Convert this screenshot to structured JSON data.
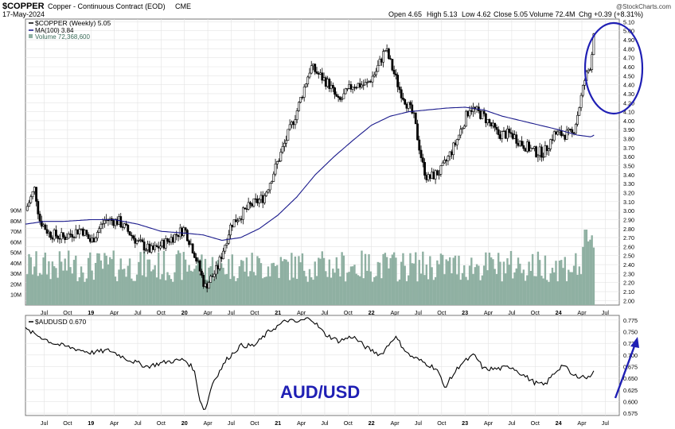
{
  "header": {
    "symbol": "$COPPER",
    "name": "Copper - Continuous Contract (EOD)",
    "exchange": "CME",
    "date": "17-May-2024",
    "open": "Open 4.65",
    "high": "High 5.13",
    "low": "Low 4.62",
    "close": "Close 5.05",
    "volume": "Volume 72.4M",
    "change": "Chg +0.39 (+8.31%)",
    "watermark": "@StockCharts.com"
  },
  "colors": {
    "price": "#000000",
    "ma": "#1a1a8c",
    "volume": "#8fb0a2",
    "annotation": "#1f1fb4",
    "grid": "#e3e3e3"
  },
  "chart_data": [
    {
      "type": "candlestick",
      "legend": [
        "$COPPER (Weekly) 5.05",
        "MA(100) 3.84",
        "Volume 72,368,600"
      ],
      "x_ticks": [
        "Jul",
        "Oct",
        "19",
        "Apr",
        "Jul",
        "Oct",
        "20",
        "Apr",
        "Jul",
        "Oct",
        "21",
        "Apr",
        "Jul",
        "Oct",
        "22",
        "Apr",
        "Jul",
        "Oct",
        "23",
        "Apr",
        "Jul",
        "Oct",
        "24",
        "Apr",
        "Jul"
      ],
      "x_tick_dates": [
        2018.5,
        2018.75,
        2019.0,
        2019.25,
        2019.5,
        2019.75,
        2020.0,
        2020.25,
        2020.5,
        2020.75,
        2021.0,
        2021.25,
        2021.5,
        2021.75,
        2022.0,
        2022.25,
        2022.5,
        2022.75,
        2023.0,
        2023.25,
        2023.5,
        2023.75,
        2024.0,
        2024.25,
        2024.5
      ],
      "xlim": [
        2018.3,
        2024.65
      ],
      "ylim": [
        1.95,
        5.13
      ],
      "y_ticks": [
        "2.00",
        "2.10",
        "2.20",
        "2.30",
        "2.40",
        "2.50",
        "2.60",
        "2.70",
        "2.80",
        "2.90",
        "3.00",
        "3.10",
        "3.20",
        "3.30",
        "3.40",
        "3.50",
        "3.60",
        "3.70",
        "3.80",
        "3.90",
        "4.00",
        "4.10",
        "4.20",
        "4.30",
        "4.40",
        "4.50",
        "4.60",
        "4.70",
        "4.80",
        "4.90",
        "5.00",
        "5.10"
      ],
      "price_anchors": [
        [
          2018.3,
          3.0
        ],
        [
          2018.4,
          3.25
        ],
        [
          2018.45,
          2.9
        ],
        [
          2018.55,
          2.75
        ],
        [
          2018.7,
          2.7
        ],
        [
          2018.9,
          2.8
        ],
        [
          2019.0,
          2.65
        ],
        [
          2019.15,
          2.9
        ],
        [
          2019.3,
          2.88
        ],
        [
          2019.5,
          2.65
        ],
        [
          2019.65,
          2.55
        ],
        [
          2019.8,
          2.65
        ],
        [
          2020.0,
          2.8
        ],
        [
          2020.1,
          2.55
        ],
        [
          2020.22,
          2.15
        ],
        [
          2020.35,
          2.35
        ],
        [
          2020.5,
          2.85
        ],
        [
          2020.7,
          3.05
        ],
        [
          2020.85,
          3.15
        ],
        [
          2021.0,
          3.55
        ],
        [
          2021.2,
          4.1
        ],
        [
          2021.35,
          4.6
        ],
        [
          2021.45,
          4.5
        ],
        [
          2021.55,
          4.4
        ],
        [
          2021.65,
          4.2
        ],
        [
          2021.8,
          4.4
        ],
        [
          2021.95,
          4.4
        ],
        [
          2022.05,
          4.55
        ],
        [
          2022.15,
          4.8
        ],
        [
          2022.3,
          4.35
        ],
        [
          2022.45,
          4.05
        ],
        [
          2022.55,
          3.5
        ],
        [
          2022.6,
          3.35
        ],
        [
          2022.75,
          3.45
        ],
        [
          2022.9,
          3.75
        ],
        [
          2023.05,
          4.15
        ],
        [
          2023.2,
          4.05
        ],
        [
          2023.35,
          3.85
        ],
        [
          2023.5,
          3.85
        ],
        [
          2023.6,
          3.75
        ],
        [
          2023.75,
          3.65
        ],
        [
          2023.85,
          3.65
        ],
        [
          2023.95,
          3.85
        ],
        [
          2024.05,
          3.85
        ],
        [
          2024.15,
          3.85
        ],
        [
          2024.2,
          4.05
        ],
        [
          2024.28,
          4.45
        ],
        [
          2024.35,
          4.65
        ],
        [
          2024.38,
          5.05
        ]
      ],
      "ma_anchors": [
        [
          2018.3,
          2.85
        ],
        [
          2018.5,
          2.88
        ],
        [
          2018.7,
          2.88
        ],
        [
          2019.0,
          2.9
        ],
        [
          2019.25,
          2.9
        ],
        [
          2019.5,
          2.85
        ],
        [
          2019.75,
          2.77
        ],
        [
          2020.0,
          2.75
        ],
        [
          2020.2,
          2.73
        ],
        [
          2020.4,
          2.67
        ],
        [
          2020.6,
          2.7
        ],
        [
          2020.8,
          2.8
        ],
        [
          2021.0,
          2.95
        ],
        [
          2021.2,
          3.15
        ],
        [
          2021.4,
          3.4
        ],
        [
          2021.6,
          3.6
        ],
        [
          2021.8,
          3.78
        ],
        [
          2022.0,
          3.95
        ],
        [
          2022.2,
          4.05
        ],
        [
          2022.4,
          4.1
        ],
        [
          2022.6,
          4.12
        ],
        [
          2022.8,
          4.14
        ],
        [
          2023.0,
          4.15
        ],
        [
          2023.2,
          4.12
        ],
        [
          2023.4,
          4.05
        ],
        [
          2023.6,
          4.0
        ],
        [
          2023.8,
          3.95
        ],
        [
          2024.0,
          3.9
        ],
        [
          2024.2,
          3.84
        ],
        [
          2024.35,
          3.82
        ],
        [
          2024.38,
          3.84
        ]
      ],
      "volume_axis": [
        "90M",
        "80M",
        "70M",
        "60M",
        "50M",
        "40M",
        "30M",
        "20M",
        "10M"
      ],
      "volume_ylim": [
        0,
        92
      ]
    },
    {
      "type": "line",
      "legend": [
        "$AUDUSD 0.670"
      ],
      "annotation": "AUD/USD",
      "ylim": [
        0.57,
        0.785
      ],
      "y_ticks": [
        "0.775",
        "0.750",
        "0.725",
        "0.700",
        "0.675",
        "0.650",
        "0.625",
        "0.600",
        "0.575"
      ],
      "x_ticks": [
        "Jul",
        "Oct",
        "19",
        "Apr",
        "Jul",
        "Oct",
        "20",
        "Apr",
        "Jul",
        "Oct",
        "21",
        "Apr",
        "Jul",
        "Oct",
        "22",
        "Apr",
        "Jul",
        "Oct",
        "23",
        "Apr",
        "Jul",
        "Oct",
        "24",
        "Apr",
        "Jul"
      ],
      "anchors": [
        [
          2018.3,
          0.755
        ],
        [
          2018.45,
          0.74
        ],
        [
          2018.6,
          0.725
        ],
        [
          2018.8,
          0.715
        ],
        [
          2019.0,
          0.705
        ],
        [
          2019.2,
          0.71
        ],
        [
          2019.4,
          0.69
        ],
        [
          2019.6,
          0.675
        ],
        [
          2019.8,
          0.685
        ],
        [
          2020.0,
          0.69
        ],
        [
          2020.1,
          0.67
        ],
        [
          2020.17,
          0.6
        ],
        [
          2020.22,
          0.58
        ],
        [
          2020.3,
          0.64
        ],
        [
          2020.45,
          0.69
        ],
        [
          2020.6,
          0.72
        ],
        [
          2020.75,
          0.72
        ],
        [
          2020.9,
          0.75
        ],
        [
          2021.1,
          0.775
        ],
        [
          2021.2,
          0.77
        ],
        [
          2021.35,
          0.78
        ],
        [
          2021.5,
          0.745
        ],
        [
          2021.65,
          0.73
        ],
        [
          2021.8,
          0.74
        ],
        [
          2021.95,
          0.715
        ],
        [
          2022.1,
          0.7
        ],
        [
          2022.25,
          0.74
        ],
        [
          2022.4,
          0.7
        ],
        [
          2022.55,
          0.685
        ],
        [
          2022.7,
          0.67
        ],
        [
          2022.78,
          0.63
        ],
        [
          2022.85,
          0.65
        ],
        [
          2022.95,
          0.68
        ],
        [
          2023.1,
          0.7
        ],
        [
          2023.2,
          0.67
        ],
        [
          2023.35,
          0.67
        ],
        [
          2023.5,
          0.675
        ],
        [
          2023.6,
          0.66
        ],
        [
          2023.75,
          0.64
        ],
        [
          2023.85,
          0.635
        ],
        [
          2023.95,
          0.66
        ],
        [
          2024.05,
          0.68
        ],
        [
          2024.15,
          0.655
        ],
        [
          2024.25,
          0.655
        ],
        [
          2024.32,
          0.65
        ],
        [
          2024.38,
          0.67
        ]
      ]
    }
  ]
}
